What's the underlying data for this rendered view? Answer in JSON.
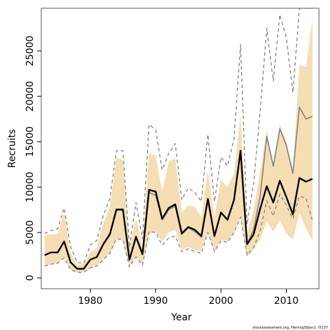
{
  "chart_data": {
    "type": "line",
    "xlabel": "Year",
    "ylabel": "Recruits",
    "caption": "stockassessment.org, Herring30Jan2, r5137",
    "xlim": [
      1972.5,
      2015
    ],
    "ylim": [
      -1200,
      29700
    ],
    "x_ticks": [
      1980,
      1990,
      2000,
      2010
    ],
    "y_ticks": [
      0,
      5000,
      10000,
      15000,
      20000,
      25000
    ],
    "grid": false,
    "colors": {
      "band": "#f5deb3",
      "estimate": "#000000",
      "alt_estimate": "#808080",
      "alt_ci": "#808080"
    },
    "series": [
      {
        "style": "band",
        "x": [
          1973,
          1974,
          1975,
          1976,
          1977,
          1978,
          1979,
          1980,
          1981,
          1982,
          1983,
          1984,
          1985,
          1986,
          1987,
          1988,
          1989,
          1990,
          1991,
          1992,
          1993,
          1994,
          1995,
          1996,
          1997,
          1998,
          1999,
          2000,
          2001,
          2002,
          2003,
          2004,
          2005,
          2006,
          2007,
          2008,
          2009,
          2010,
          2011,
          2012,
          2013,
          2014
        ],
        "lower": [
          1300,
          1500,
          1600,
          2300,
          900,
          600,
          700,
          1100,
          1400,
          2100,
          2700,
          4300,
          4200,
          1200,
          2400,
          1500,
          4800,
          5100,
          4000,
          5000,
          5300,
          3100,
          3400,
          3100,
          3000,
          5100,
          2900,
          4200,
          4000,
          5000,
          6700,
          2300,
          3200,
          4200,
          6200,
          5100,
          6300,
          4900,
          4200,
          7100,
          5500,
          4100
        ],
        "upper": [
          4700,
          4800,
          4800,
          7300,
          2800,
          1400,
          1600,
          2800,
          3300,
          6000,
          7800,
          13200,
          13000,
          3400,
          6500,
          3600,
          13700,
          13500,
          9500,
          12800,
          13200,
          7200,
          8000,
          7800,
          6700,
          11900,
          6700,
          10800,
          10000,
          11500,
          17900,
          4900,
          7500,
          11700,
          16300,
          12300,
          17000,
          15000,
          11900,
          23500,
          23200,
          28500
        ]
      },
      {
        "style": "line",
        "y": [
          2500,
          2800,
          2800,
          4000,
          1700,
          1000,
          1000,
          2000,
          2300,
          3700,
          4800,
          7500,
          7500,
          2000,
          4500,
          2600,
          9700,
          9500,
          6500,
          7700,
          8100,
          4900,
          5600,
          5300,
          4600,
          8700,
          4600,
          7200,
          6400,
          8600,
          14000,
          3700,
          4800,
          7600,
          10100,
          8300,
          10700,
          8900,
          7000,
          11000,
          10600,
          10900
        ]
      },
      {
        "style": "line",
        "y": [
          2500,
          2800,
          2800,
          4000,
          1700,
          1000,
          1000,
          2000,
          2300,
          3800,
          4900,
          7600,
          7600,
          2000,
          4600,
          2600,
          9400,
          9100,
          6400,
          7500,
          7900,
          4800,
          5500,
          5100,
          4500,
          8600,
          4600,
          7100,
          6400,
          8500,
          13900,
          3700,
          5300,
          9000,
          15600,
          12300,
          16400,
          14600,
          11500,
          18800,
          17500,
          17800
        ]
      },
      {
        "style": "dashed",
        "y": [
          1300,
          1500,
          1600,
          2200,
          900,
          600,
          600,
          1100,
          1300,
          2000,
          2700,
          4300,
          4200,
          1200,
          2300,
          1400,
          5100,
          5000,
          3600,
          4400,
          4600,
          2900,
          3200,
          2900,
          2700,
          5000,
          2900,
          4100,
          3900,
          5000,
          6700,
          2500,
          3300,
          5200,
          8500,
          6800,
          9200,
          8000,
          6500,
          9000,
          8800,
          6300
        ]
      },
      {
        "style": "dashed",
        "y": [
          4900,
          5200,
          5400,
          7700,
          3400,
          1700,
          1600,
          3600,
          4100,
          6900,
          8700,
          14000,
          14000,
          3400,
          8300,
          4300,
          16900,
          16300,
          11900,
          13700,
          14800,
          8600,
          9900,
          9400,
          8400,
          15800,
          8400,
          13300,
          12300,
          15300,
          25700,
          5900,
          10400,
          18300,
          27500,
          21700,
          29000,
          26500,
          20400,
          29700,
          29700,
          29700
        ]
      }
    ]
  }
}
